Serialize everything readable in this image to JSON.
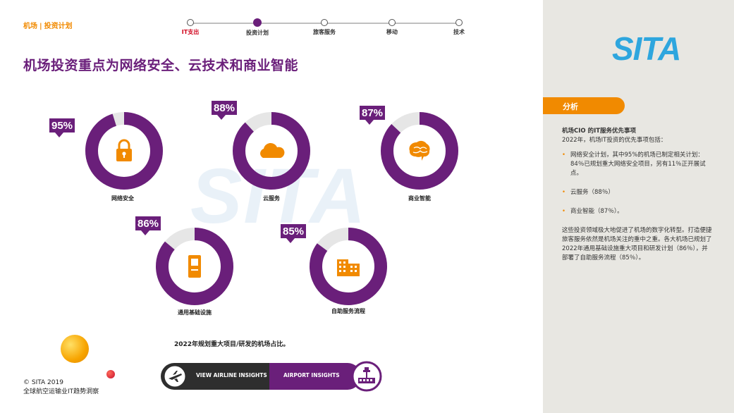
{
  "breadcrumb": {
    "section": "机场",
    "separator": "|",
    "page": "投资计划"
  },
  "nav": {
    "steps": [
      {
        "label": "IT支出"
      },
      {
        "label": "投资计划"
      },
      {
        "label": "旅客服务"
      },
      {
        "label": "移动"
      },
      {
        "label": "技术"
      }
    ],
    "active_index": 1
  },
  "title": "机场投资重点为网络安全、云技术和商业智能",
  "watermark": "SITA",
  "rings": [
    {
      "percent_label": "95%",
      "value": 95,
      "label": "网络安全",
      "icon": "lock-icon"
    },
    {
      "percent_label": "88%",
      "value": 88,
      "label": "云服务",
      "icon": "cloud-icon"
    },
    {
      "percent_label": "87%",
      "value": 87,
      "label": "商业智能",
      "icon": "brain-icon"
    },
    {
      "percent_label": "86%",
      "value": 86,
      "label": "通用基础设施",
      "icon": "kiosk-icon"
    },
    {
      "percent_label": "85%",
      "value": 85,
      "label": "自助服务流程",
      "icon": "buildings-icon"
    }
  ],
  "caption": "2022年规划重大项目/研发的机场占比。",
  "buttons": {
    "airline": "VIEW AIRLINE INSIGHTS",
    "airport": "AIRPORT INSIGHTS"
  },
  "footer": {
    "copyright": "© SITA 2019",
    "subtitle": "全球航空运输业IT趋势洞察"
  },
  "panel": {
    "logo": "SITA",
    "tag": "分析",
    "heading": "机场CIO 的IT服务优先事项",
    "intro": "2022年，机场IT投资的优先事项包括：",
    "bullets": [
      "网络安全计划，其中95%的机场已制定相关计划：84％已规划重大网络安全项目，另有11％正开展试点。",
      "云服务（88％）",
      "商业智能（87％）。"
    ],
    "paragraph": "这些投资领域极大地促进了机场的数字化转型。打造便捷旅客服务依然是机场关注的重中之重。各大机场已规划了2022年通用基础设施重大项目和研发计划（86％），并部署了自助服务流程（85％）。"
  },
  "colors": {
    "purple": "#6a1f7a",
    "orange": "#f18a00",
    "blue": "#2ea6de",
    "panel_bg": "#e8e7e2"
  }
}
